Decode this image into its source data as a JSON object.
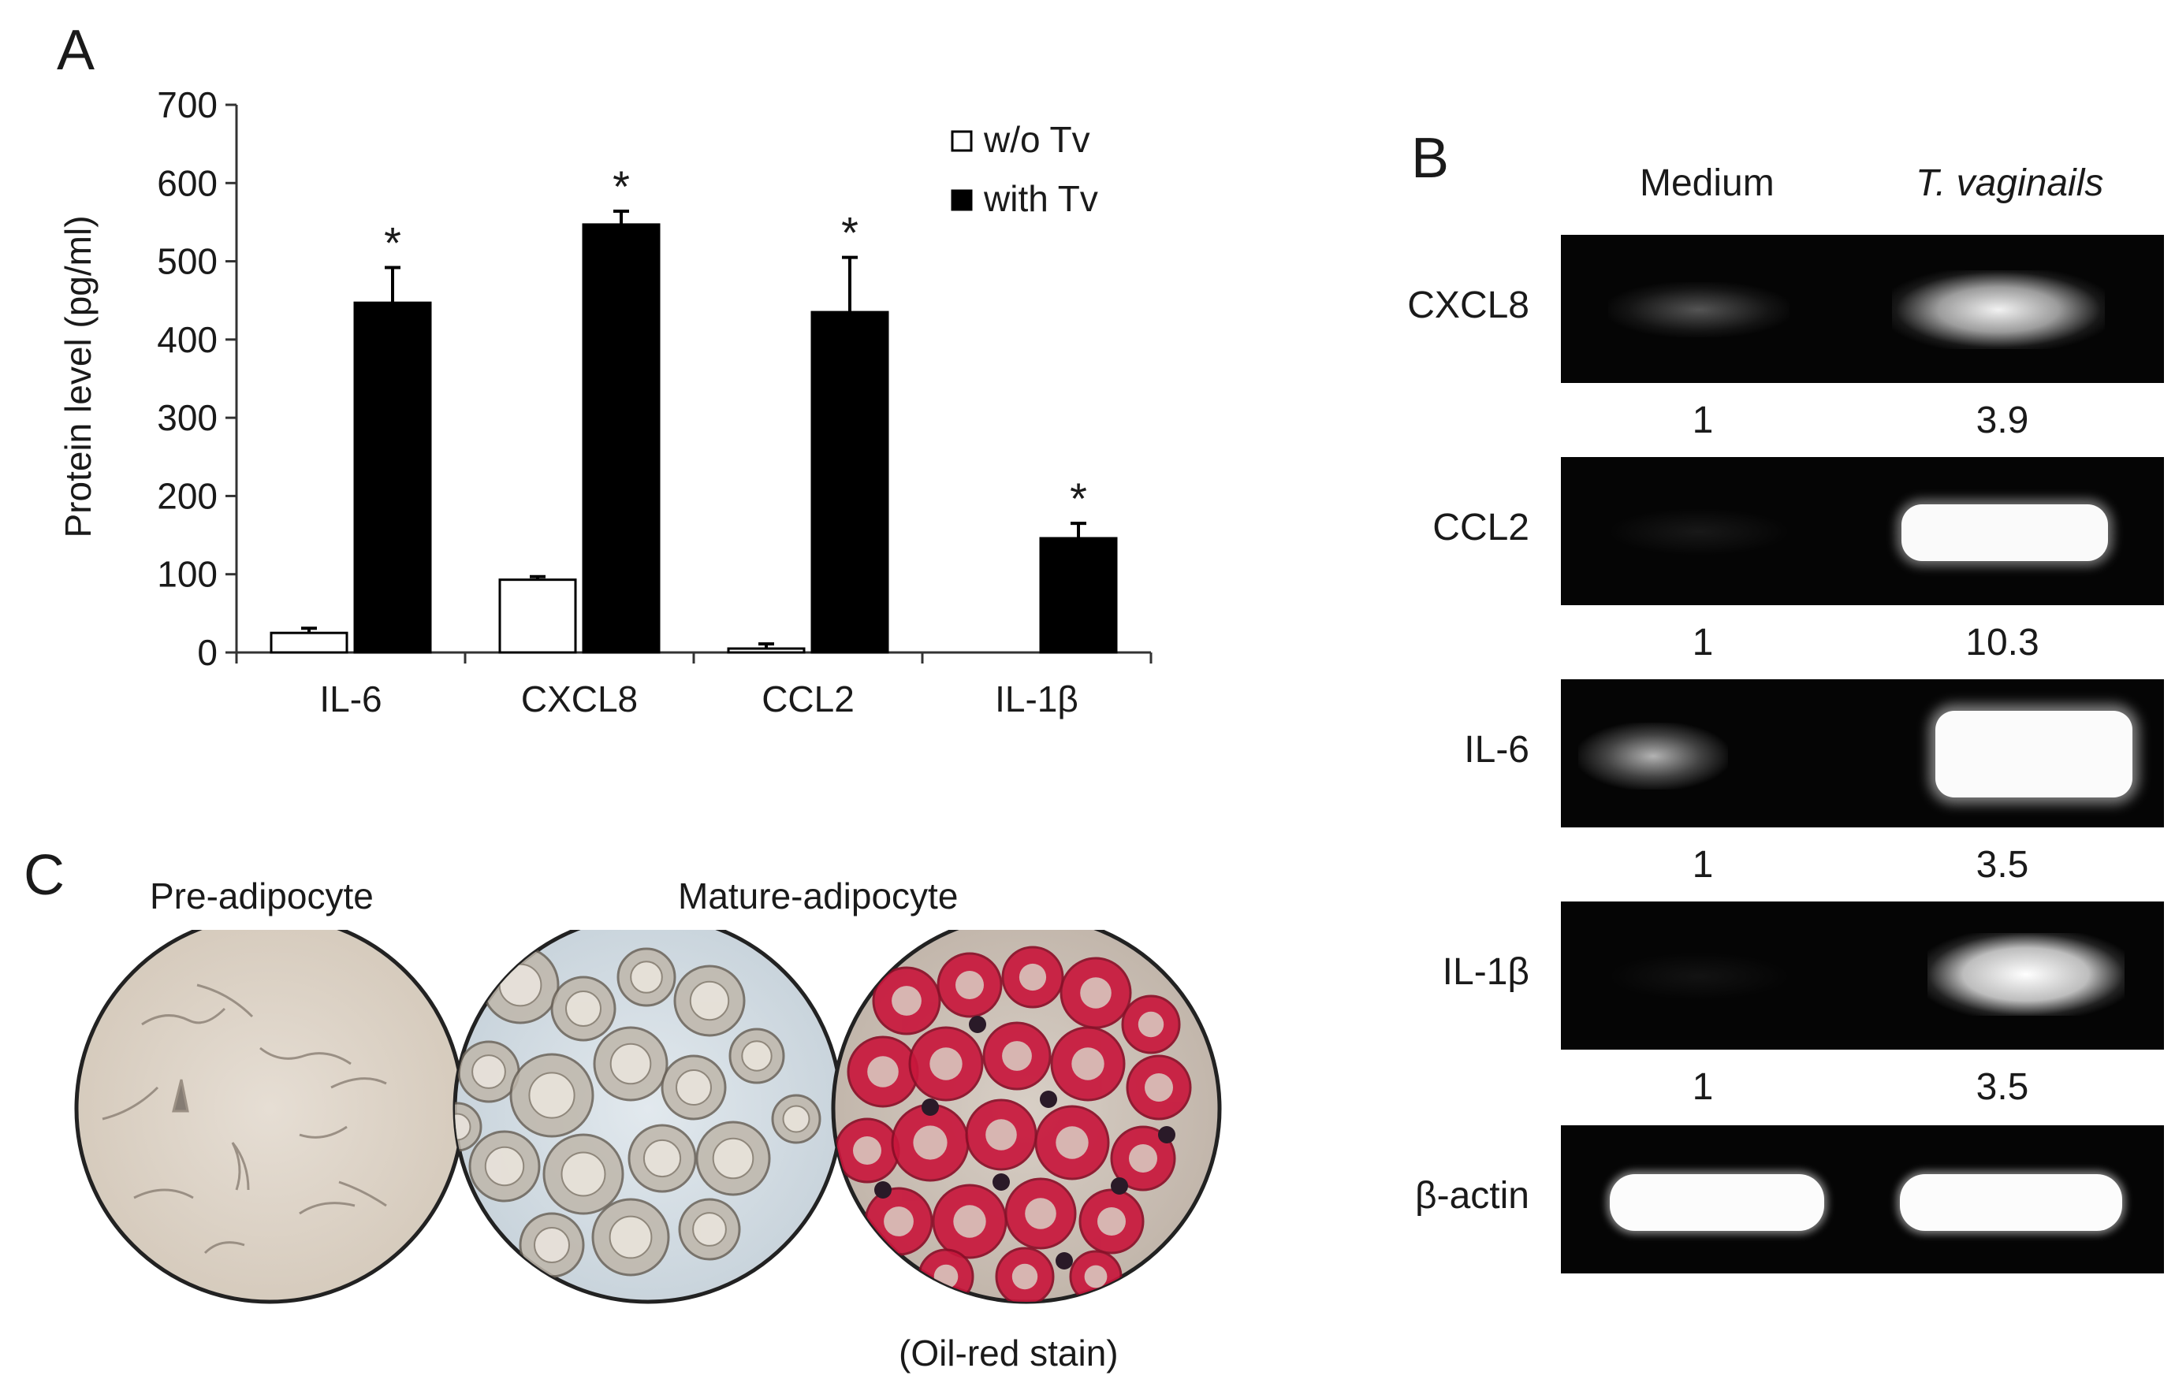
{
  "panels": {
    "a": {
      "letter": "A"
    },
    "b": {
      "letter": "B"
    },
    "c": {
      "letter": "C"
    }
  },
  "chart_data": {
    "type": "bar",
    "ylabel": "Protein level (pg/ml)",
    "ylim": [
      0,
      700
    ],
    "yticks": [
      "0",
      "100",
      "200",
      "300",
      "400",
      "500",
      "600",
      "700"
    ],
    "categories": [
      "IL-6",
      "CXCL8",
      "CCL2",
      "IL-1β"
    ],
    "series": [
      {
        "name": "w/o Tv",
        "color": "#ffffff",
        "values": [
          25,
          93,
          5,
          0
        ],
        "errors": [
          6,
          4,
          6,
          0
        ]
      },
      {
        "name": "with Tv",
        "color": "#000000",
        "values": [
          447,
          547,
          435,
          146
        ],
        "errors": [
          45,
          17,
          70,
          19
        ]
      }
    ],
    "significance": [
      "*",
      "*",
      "*",
      "*"
    ],
    "legend_position": "top-right"
  },
  "gel": {
    "columns": [
      "Medium",
      "T. vaginails"
    ],
    "bands": [
      {
        "label": "CXCL8",
        "ratio_left": "1",
        "ratio_right": "3.9"
      },
      {
        "label": "CCL2",
        "ratio_left": "1",
        "ratio_right": "10.3"
      },
      {
        "label": "IL-6",
        "ratio_left": "1",
        "ratio_right": "3.5"
      },
      {
        "label": "IL-1β",
        "ratio_left": "1",
        "ratio_right": "3.5"
      },
      {
        "label": "β-actin"
      }
    ]
  },
  "micrographs": {
    "pre_label": "Pre-adipocyte",
    "mature_label": "Mature-adipocyte",
    "stain_label": "(Oil-red stain)"
  }
}
